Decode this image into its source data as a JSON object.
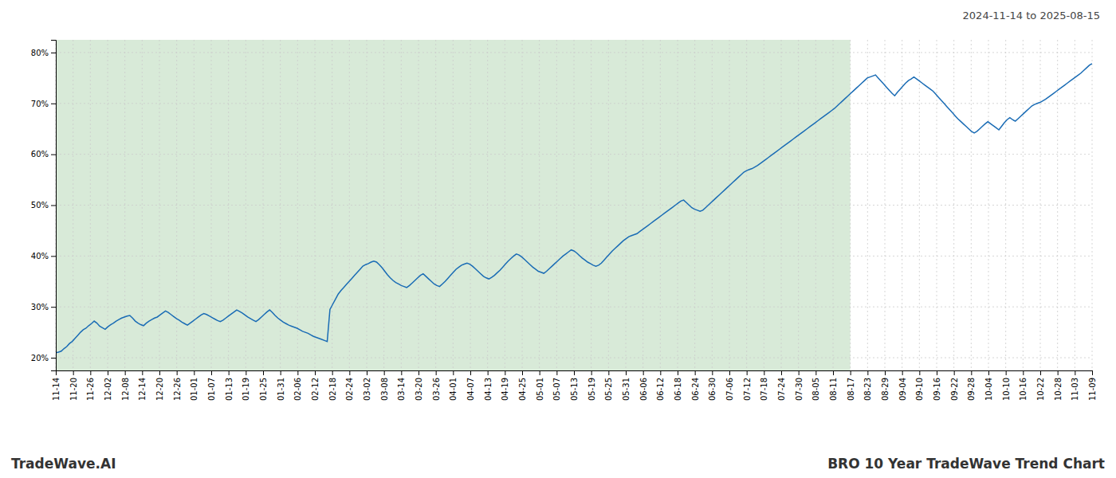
{
  "chart_data": {
    "type": "line",
    "title": "BRO 10 Year TradeWave Trend Chart",
    "subtitle": "2024-11-14 to 2025-08-15",
    "annotations": [
      "TradeWave.AI"
    ],
    "color": "#1a6cb5",
    "grid": true,
    "shaded": {
      "x": [
        0,
        289.8
      ],
      "color": "#d8ead8"
    },
    "xlim": [
      0,
      378
    ],
    "xticks": [
      {
        "value": 0,
        "label": "11-14"
      },
      {
        "value": 6.3,
        "label": "11-20"
      },
      {
        "value": 12.6,
        "label": "11-26"
      },
      {
        "value": 18.9,
        "label": "12-02"
      },
      {
        "value": 25.2,
        "label": "12-08"
      },
      {
        "value": 31.5,
        "label": "12-14"
      },
      {
        "value": 37.8,
        "label": "12-20"
      },
      {
        "value": 44.1,
        "label": "12-26"
      },
      {
        "value": 50.4,
        "label": "01-01"
      },
      {
        "value": 56.7,
        "label": "01-07"
      },
      {
        "value": 63,
        "label": "01-13"
      },
      {
        "value": 69.3,
        "label": "01-19"
      },
      {
        "value": 75.6,
        "label": "01-25"
      },
      {
        "value": 81.9,
        "label": "01-31"
      },
      {
        "value": 88.2,
        "label": "02-06"
      },
      {
        "value": 94.5,
        "label": "02-12"
      },
      {
        "value": 100.8,
        "label": "02-18"
      },
      {
        "value": 107.1,
        "label": "02-24"
      },
      {
        "value": 113.4,
        "label": "03-02"
      },
      {
        "value": 119.7,
        "label": "03-08"
      },
      {
        "value": 126,
        "label": "03-14"
      },
      {
        "value": 132.3,
        "label": "03-20"
      },
      {
        "value": 138.6,
        "label": "03-26"
      },
      {
        "value": 144.9,
        "label": "04-01"
      },
      {
        "value": 151.2,
        "label": "04-07"
      },
      {
        "value": 157.5,
        "label": "04-13"
      },
      {
        "value": 163.8,
        "label": "04-19"
      },
      {
        "value": 170.1,
        "label": "04-25"
      },
      {
        "value": 176.4,
        "label": "05-01"
      },
      {
        "value": 182.7,
        "label": "05-07"
      },
      {
        "value": 189,
        "label": "05-13"
      },
      {
        "value": 195.3,
        "label": "05-19"
      },
      {
        "value": 201.6,
        "label": "05-25"
      },
      {
        "value": 207.9,
        "label": "05-31"
      },
      {
        "value": 214.2,
        "label": "06-06"
      },
      {
        "value": 220.5,
        "label": "06-12"
      },
      {
        "value": 226.8,
        "label": "06-18"
      },
      {
        "value": 233.1,
        "label": "06-24"
      },
      {
        "value": 239.4,
        "label": "06-30"
      },
      {
        "value": 245.7,
        "label": "07-06"
      },
      {
        "value": 252,
        "label": "07-12"
      },
      {
        "value": 258.3,
        "label": "07-18"
      },
      {
        "value": 264.6,
        "label": "07-24"
      },
      {
        "value": 270.9,
        "label": "07-30"
      },
      {
        "value": 277.2,
        "label": "08-05"
      },
      {
        "value": 283.5,
        "label": "08-11"
      },
      {
        "value": 289.8,
        "label": "08-17"
      },
      {
        "value": 296.1,
        "label": "08-23"
      },
      {
        "value": 302.4,
        "label": "08-29"
      },
      {
        "value": 308.7,
        "label": "09-04"
      },
      {
        "value": 315,
        "label": "09-10"
      },
      {
        "value": 321.3,
        "label": "09-16"
      },
      {
        "value": 327.6,
        "label": "09-22"
      },
      {
        "value": 333.9,
        "label": "09-28"
      },
      {
        "value": 340.2,
        "label": "10-04"
      },
      {
        "value": 346.5,
        "label": "10-10"
      },
      {
        "value": 352.8,
        "label": "10-16"
      },
      {
        "value": 359.1,
        "label": "10-22"
      },
      {
        "value": 365.4,
        "label": "10-28"
      },
      {
        "value": 371.7,
        "label": "11-03"
      },
      {
        "value": 378,
        "label": "11-09"
      }
    ],
    "ylim": [
      0.175,
      0.825
    ],
    "yticks": [
      {
        "value": 0.2,
        "label": "20%"
      },
      {
        "value": 0.3,
        "label": "30%"
      },
      {
        "value": 0.4,
        "label": "40%"
      },
      {
        "value": 0.5,
        "label": "50%"
      },
      {
        "value": 0.6,
        "label": "60%"
      },
      {
        "value": 0.7,
        "label": "70%"
      },
      {
        "value": 0.8,
        "label": "80%"
      }
    ],
    "values": [
      0.21,
      0.211,
      0.213,
      0.218,
      0.222,
      0.228,
      0.232,
      0.238,
      0.244,
      0.25,
      0.255,
      0.258,
      0.263,
      0.267,
      0.272,
      0.268,
      0.262,
      0.259,
      0.256,
      0.261,
      0.265,
      0.268,
      0.272,
      0.275,
      0.278,
      0.28,
      0.282,
      0.283,
      0.278,
      0.272,
      0.268,
      0.265,
      0.263,
      0.268,
      0.272,
      0.275,
      0.278,
      0.28,
      0.284,
      0.288,
      0.292,
      0.289,
      0.285,
      0.281,
      0.277,
      0.274,
      0.27,
      0.267,
      0.264,
      0.268,
      0.272,
      0.276,
      0.28,
      0.284,
      0.287,
      0.285,
      0.282,
      0.279,
      0.276,
      0.273,
      0.271,
      0.274,
      0.278,
      0.282,
      0.286,
      0.29,
      0.294,
      0.291,
      0.288,
      0.284,
      0.28,
      0.277,
      0.274,
      0.271,
      0.275,
      0.28,
      0.285,
      0.29,
      0.294,
      0.289,
      0.283,
      0.278,
      0.274,
      0.27,
      0.267,
      0.264,
      0.262,
      0.26,
      0.258,
      0.255,
      0.252,
      0.25,
      0.248,
      0.245,
      0.242,
      0.24,
      0.238,
      0.236,
      0.234,
      0.232,
      0.295,
      0.305,
      0.315,
      0.325,
      0.332,
      0.338,
      0.344,
      0.35,
      0.356,
      0.362,
      0.368,
      0.374,
      0.38,
      0.383,
      0.385,
      0.388,
      0.39,
      0.388,
      0.383,
      0.377,
      0.37,
      0.363,
      0.357,
      0.352,
      0.348,
      0.345,
      0.342,
      0.34,
      0.338,
      0.342,
      0.347,
      0.352,
      0.357,
      0.362,
      0.365,
      0.36,
      0.355,
      0.35,
      0.345,
      0.342,
      0.34,
      0.345,
      0.35,
      0.356,
      0.362,
      0.368,
      0.374,
      0.378,
      0.382,
      0.384,
      0.386,
      0.384,
      0.38,
      0.375,
      0.37,
      0.365,
      0.36,
      0.357,
      0.355,
      0.358,
      0.362,
      0.367,
      0.372,
      0.378,
      0.384,
      0.39,
      0.395,
      0.4,
      0.404,
      0.402,
      0.398,
      0.393,
      0.388,
      0.383,
      0.378,
      0.374,
      0.37,
      0.368,
      0.366,
      0.37,
      0.375,
      0.38,
      0.385,
      0.39,
      0.395,
      0.4,
      0.404,
      0.408,
      0.412,
      0.41,
      0.406,
      0.401,
      0.396,
      0.392,
      0.388,
      0.385,
      0.382,
      0.38,
      0.382,
      0.386,
      0.392,
      0.398,
      0.404,
      0.41,
      0.415,
      0.42,
      0.425,
      0.43,
      0.434,
      0.438,
      0.44,
      0.442,
      0.444,
      0.448,
      0.452,
      0.456,
      0.46,
      0.464,
      0.468,
      0.472,
      0.476,
      0.48,
      0.484,
      0.488,
      0.492,
      0.496,
      0.5,
      0.504,
      0.508,
      0.51,
      0.505,
      0.5,
      0.495,
      0.492,
      0.49,
      0.488,
      0.49,
      0.495,
      0.5,
      0.505,
      0.51,
      0.515,
      0.52,
      0.525,
      0.53,
      0.535,
      0.54,
      0.545,
      0.55,
      0.555,
      0.56,
      0.565,
      0.568,
      0.57,
      0.572,
      0.575,
      0.578,
      0.582,
      0.586,
      0.59,
      0.594,
      0.598,
      0.602,
      0.606,
      0.61,
      0.614,
      0.618,
      0.622,
      0.626,
      0.63,
      0.634,
      0.638,
      0.642,
      0.646,
      0.65,
      0.654,
      0.658,
      0.662,
      0.666,
      0.67,
      0.674,
      0.678,
      0.682,
      0.686,
      0.69,
      0.695,
      0.7,
      0.705,
      0.71,
      0.715,
      0.72,
      0.725,
      0.73,
      0.735,
      0.74,
      0.745,
      0.75,
      0.752,
      0.754,
      0.756,
      0.75,
      0.744,
      0.738,
      0.732,
      0.726,
      0.72,
      0.715,
      0.722,
      0.728,
      0.734,
      0.74,
      0.745,
      0.748,
      0.752,
      0.748,
      0.744,
      0.74,
      0.736,
      0.732,
      0.728,
      0.724,
      0.718,
      0.712,
      0.706,
      0.7,
      0.694,
      0.688,
      0.682,
      0.676,
      0.67,
      0.665,
      0.66,
      0.655,
      0.65,
      0.645,
      0.642,
      0.645,
      0.65,
      0.655,
      0.66,
      0.664,
      0.66,
      0.656,
      0.652,
      0.648,
      0.655,
      0.662,
      0.668,
      0.672,
      0.668,
      0.665,
      0.67,
      0.675,
      0.68,
      0.685,
      0.69,
      0.695,
      0.698,
      0.7,
      0.702,
      0.705,
      0.708,
      0.712,
      0.716,
      0.72,
      0.724,
      0.728,
      0.732,
      0.736,
      0.74,
      0.744,
      0.748,
      0.752,
      0.756,
      0.76,
      0.765,
      0.77,
      0.775,
      0.778
    ]
  }
}
